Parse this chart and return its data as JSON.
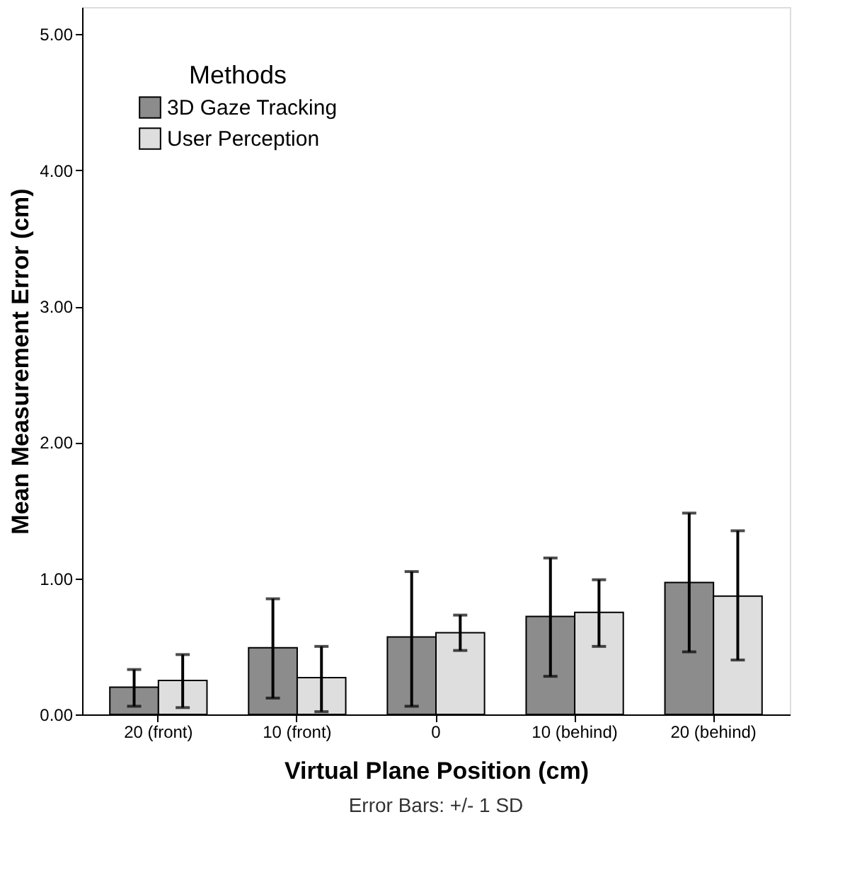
{
  "chart_data": {
    "type": "bar",
    "xlabel": "Virtual Plane Position (cm)",
    "ylabel": "Mean Measurement Error (cm)",
    "legend_title": "Methods",
    "categories": [
      "20 (front)",
      "10 (front)",
      "0",
      "10 (behind)",
      "20 (behind)"
    ],
    "series": [
      {
        "name": "3D Gaze Tracking",
        "color": "#8c8c8c",
        "values": [
          0.2,
          0.49,
          0.57,
          0.72,
          0.97
        ],
        "errors": [
          [
            0.06,
            0.33
          ],
          [
            0.12,
            0.85
          ],
          [
            0.06,
            1.05
          ],
          [
            0.28,
            1.15
          ],
          [
            0.46,
            1.48
          ]
        ]
      },
      {
        "name": "User Perception",
        "color": "#dedede",
        "values": [
          0.25,
          0.27,
          0.6,
          0.75,
          0.87
        ],
        "errors": [
          [
            0.05,
            0.44
          ],
          [
            0.02,
            0.5
          ],
          [
            0.47,
            0.73
          ],
          [
            0.5,
            0.99
          ],
          [
            0.4,
            1.35
          ]
        ]
      }
    ],
    "ylim": [
      0,
      5.2
    ],
    "yticks": [
      {
        "value": 0,
        "label": "0.00"
      },
      {
        "value": 1,
        "label": "1.00"
      },
      {
        "value": 2,
        "label": "2.00"
      },
      {
        "value": 3,
        "label": "3.00"
      },
      {
        "value": 4,
        "label": "4.00"
      },
      {
        "value": 5,
        "label": "5.00"
      }
    ],
    "grid": false,
    "legend": "top left",
    "annotations": [
      "Error Bars: +/- 1 SD"
    ]
  }
}
